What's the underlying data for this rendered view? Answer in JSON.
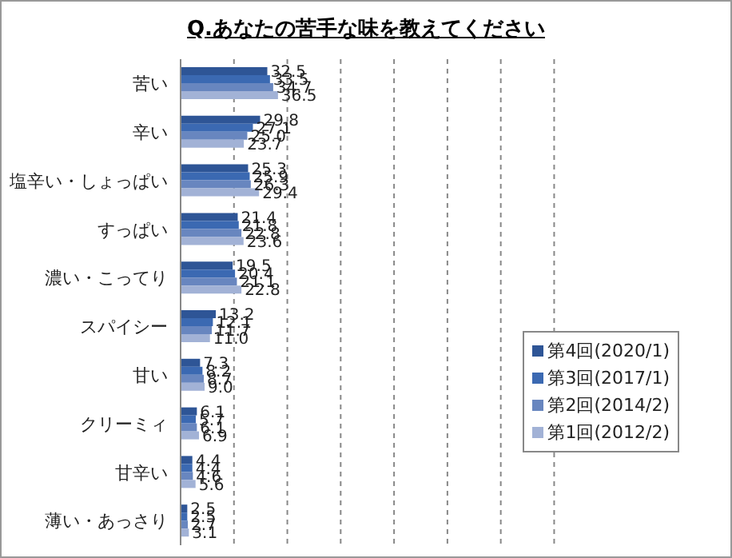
{
  "chart_data": {
    "type": "bar",
    "orientation": "horizontal",
    "title": "Q.あなたの苦手な味を教えてください",
    "categories": [
      "苦い",
      "辛い",
      "塩辛い・しょっぱい",
      "すっぱい",
      "濃い・こってり",
      "スパイシー",
      "甘い",
      "クリーミィ",
      "甘辛い",
      "薄い・あっさり"
    ],
    "series": [
      {
        "name": "第4回(2020/1)",
        "color": "#2e5596",
        "values": [
          32.5,
          29.8,
          25.3,
          21.4,
          19.5,
          13.2,
          7.3,
          6.1,
          4.4,
          2.5
        ],
        "value_labels": [
          "32.5",
          "29.8",
          "25.3",
          "21.4",
          "19.5",
          "13.2",
          "7.3",
          "6.1",
          "4.4",
          "2.5"
        ]
      },
      {
        "name": "第3回(2017/1)",
        "color": "#3b69b2",
        "values": [
          33.5,
          27.1,
          25.9,
          21.8,
          20.4,
          12.1,
          8.2,
          5.7,
          4.4,
          2.5
        ],
        "value_labels": [
          "33.5",
          "27.1",
          "25.9",
          "21.8",
          "20.4",
          "12.1",
          "8.2",
          "5.7",
          "4.4",
          "2.5"
        ]
      },
      {
        "name": "第2回(2014/2)",
        "color": "#6886bf",
        "values": [
          34.7,
          25.0,
          26.3,
          22.8,
          21.1,
          11.7,
          8.7,
          6.1,
          4.6,
          2.7
        ],
        "value_labels": [
          "34.7",
          "25.0",
          "26.3",
          "22.8",
          "21.1",
          "11.7",
          "8.7",
          "6.1",
          "4.6",
          "2.7"
        ]
      },
      {
        "name": "第1回(2012/2)",
        "color": "#a2b2d6",
        "values": [
          36.5,
          23.7,
          29.4,
          23.6,
          22.8,
          11.0,
          9.0,
          6.9,
          5.6,
          3.1
        ],
        "value_labels": [
          "36.5",
          "23.7",
          "29.4",
          "23.6",
          "22.8",
          "11.0",
          "9.0",
          "6.9",
          "5.6",
          "3.1"
        ]
      }
    ],
    "xlim": [
      0,
      140
    ],
    "xticks": [
      {
        "value": 0,
        "label": null
      },
      {
        "value": 20,
        "label": null
      },
      {
        "value": 40,
        "label": null
      },
      {
        "value": 60,
        "label": null
      },
      {
        "value": 80,
        "label": null
      },
      {
        "value": 100,
        "label": null
      },
      {
        "value": 120,
        "label": null
      },
      {
        "value": 140,
        "label": null
      }
    ],
    "tick_labels": "y",
    "grid": "x",
    "line_style": "dashed",
    "legend": "right"
  }
}
